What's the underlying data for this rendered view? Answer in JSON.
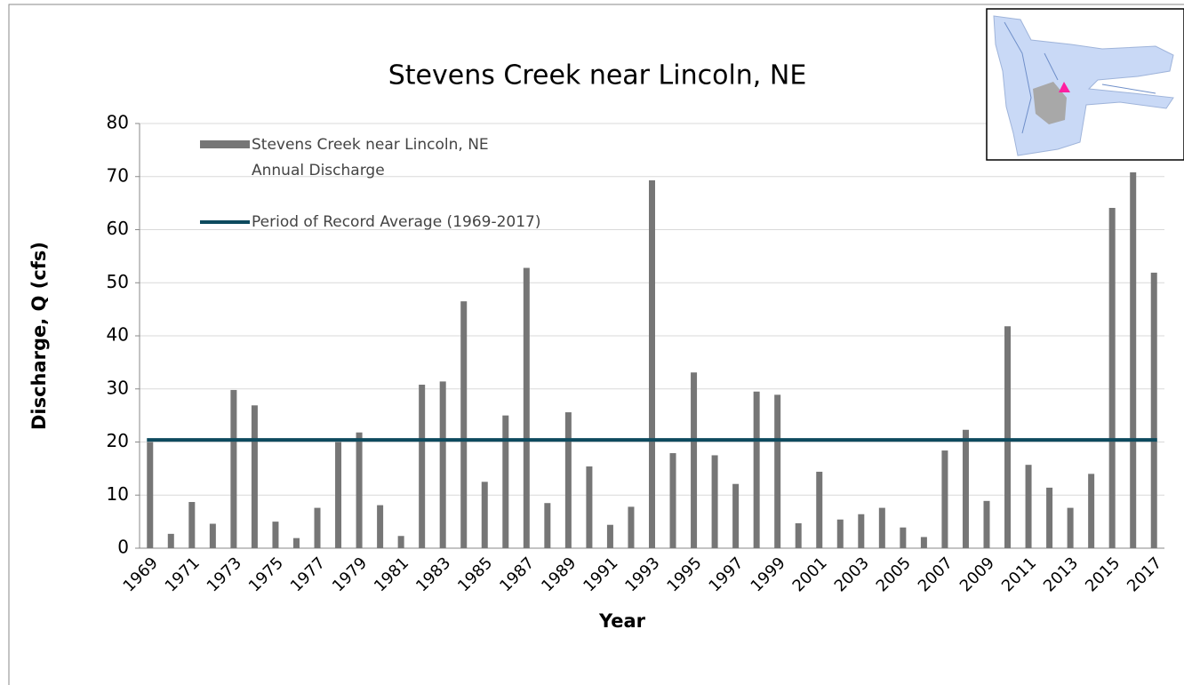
{
  "chart_data": {
    "type": "bar",
    "title": "Stevens Creek near Lincoln, NE",
    "x_label": "Year",
    "y_label": "Discharge,  Q  (cfs)",
    "categories": [
      "1969",
      null,
      "1971",
      null,
      "1973",
      null,
      "1975",
      null,
      "1977",
      null,
      "1979",
      null,
      "1981",
      null,
      "1983",
      null,
      "1985",
      null,
      "1987",
      null,
      "1989",
      null,
      "1991",
      null,
      "1993",
      null,
      "1995",
      null,
      "1997",
      null,
      "1999",
      null,
      "2001",
      null,
      "2003",
      null,
      "2005",
      null,
      "2007",
      null,
      "2009",
      null,
      "2011",
      null,
      "2013",
      null,
      "2015",
      null,
      "2017"
    ],
    "series": [
      {
        "name": [
          "Stevens Creek near Lincoln, NE",
          "Annual Discharge"
        ],
        "color": "#767676",
        "values": [
          20,
          2.7,
          8.7,
          4.6,
          29.8,
          26.9,
          5,
          1.9,
          7.6,
          20,
          21.8,
          8.1,
          2.3,
          30.8,
          31.4,
          46.5,
          12.5,
          25,
          52.8,
          8.5,
          25.6,
          15.4,
          4.4,
          7.8,
          69.3,
          17.9,
          33.1,
          17.5,
          12.1,
          29.5,
          28.9,
          4.7,
          14.4,
          5.4,
          6.4,
          7.6,
          3.9,
          2.1,
          18.4,
          22.3,
          8.9,
          41.8,
          15.7,
          11.4,
          7.6,
          14,
          64.1,
          70.8,
          51.9
        ]
      }
    ],
    "average": {
      "name": "Period of Record Average (1969-2017)",
      "color": "#0d4a5e",
      "value": 20.4
    },
    "ylim": [
      0,
      80
    ],
    "yticks": [
      0,
      10,
      20,
      30,
      40,
      50,
      60,
      70,
      80
    ],
    "grid": true
  }
}
